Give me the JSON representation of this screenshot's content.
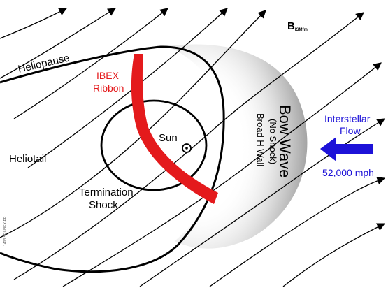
{
  "labels": {
    "heliopause": "Heliopause",
    "ibex_ribbon_line1": "IBEX",
    "ibex_ribbon_line2": "Ribbon",
    "sun": "Sun",
    "heliotail": "Heliotail",
    "termination_line1": "Termination",
    "termination_line2": "Shock",
    "bow_wave": "Bow Wave",
    "no_shock": "(No Shock)",
    "broad_h_wall": "Broad H Wall",
    "b_field": "B",
    "b_field_sub": "ISMfm",
    "flow_line1": "Interstellar",
    "flow_line2": "Flow",
    "speed": "52,000 mph",
    "credit": "1403 SRI-IBEX-PR"
  },
  "colors": {
    "ribbon": "#e41a1c",
    "flow_arrow": "#1d12d8",
    "flow_text": "#1d12d8",
    "outline": "#000000",
    "bow_wave_shade": "#a8a8a8"
  },
  "icons": {
    "flow_arrow": "left-arrow-icon",
    "sun_symbol": "sun-icon"
  }
}
